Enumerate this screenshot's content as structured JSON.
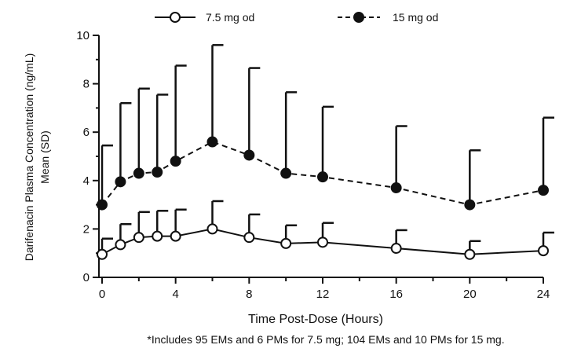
{
  "chart_data": {
    "type": "line",
    "xlabel": "Time Post-Dose (Hours)",
    "ylabel_line1": "Darifenacin Plasma Concentration (ng/mL)",
    "ylabel_line2": "Mean (SD)",
    "x_ticks": [
      0,
      4,
      8,
      12,
      16,
      20,
      24
    ],
    "y_ticks": [
      0,
      2,
      4,
      6,
      8,
      10
    ],
    "xlim": [
      0,
      24
    ],
    "ylim": [
      0,
      10
    ],
    "legend_position": "top",
    "footnote": "*Includes 95 EMs and 6 PMs for 7.5 mg; 104 EMs and 10 PMs for 15 mg.",
    "series": [
      {
        "name": "7.5 mg od",
        "marker": "open-circle",
        "line_style": "solid",
        "x": [
          0,
          1,
          2,
          3,
          4,
          6,
          8,
          10,
          12,
          16,
          20,
          24
        ],
        "y": [
          0.95,
          1.35,
          1.65,
          1.7,
          1.7,
          2.0,
          1.65,
          1.4,
          1.45,
          1.2,
          0.95,
          1.1
        ],
        "sd_upper": [
          1.6,
          2.2,
          2.7,
          2.75,
          2.8,
          3.15,
          2.6,
          2.15,
          2.25,
          1.95,
          1.5,
          1.85
        ]
      },
      {
        "name": "15 mg od",
        "marker": "filled-circle",
        "line_style": "dashed",
        "x": [
          0,
          1,
          2,
          3,
          4,
          6,
          8,
          10,
          12,
          16,
          20,
          24
        ],
        "y": [
          3.0,
          3.95,
          4.3,
          4.35,
          4.8,
          5.6,
          5.05,
          4.3,
          4.15,
          3.7,
          3.0,
          3.6
        ],
        "sd_upper": [
          5.45,
          7.2,
          7.8,
          7.55,
          8.75,
          9.6,
          8.65,
          7.65,
          7.05,
          6.25,
          5.25,
          6.6
        ]
      }
    ]
  }
}
